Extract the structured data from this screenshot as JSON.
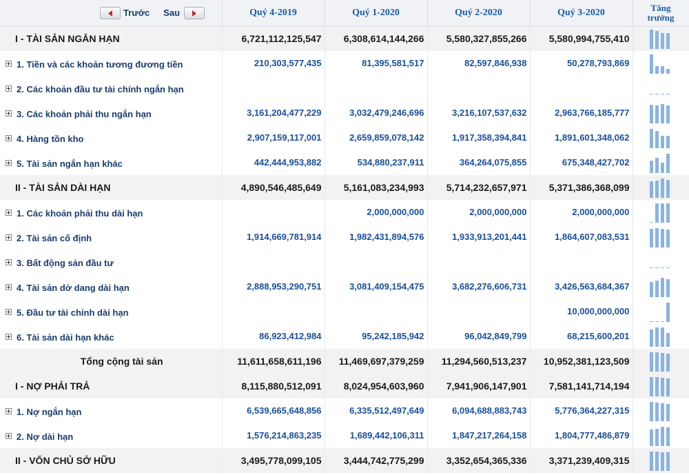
{
  "nav": {
    "prev_label": "Trước",
    "next_label": "Sau",
    "prev_icon": "arrow-left-icon",
    "next_icon": "arrow-right-icon",
    "arrow_color": "#c0262d"
  },
  "columns": [
    "Quý 4-2019",
    "Quý 1-2020",
    "Quý 2-2020",
    "Quý 3-2020"
  ],
  "growth_header": [
    "Tăng",
    "trưởng"
  ],
  "rows": [
    {
      "type": "sec",
      "label": "I - TÀI SẢN NGẮN HẠN",
      "values": [
        "6,721,112,125,547",
        "6,308,614,144,266",
        "5,580,327,855,266",
        "5,580,994,755,410"
      ],
      "trend": [
        1,
        0.94,
        0.83,
        0.83
      ]
    },
    {
      "type": "item",
      "label": "1. Tiền và các khoản tương đương tiền",
      "values": [
        "210,303,577,435",
        "81,395,581,517",
        "82,597,846,938",
        "50,278,793,869"
      ],
      "trend": [
        1,
        0.39,
        0.39,
        0.24
      ]
    },
    {
      "type": "item",
      "label": "2. Các khoản đầu tư tài chính ngắn hạn",
      "values": [
        "",
        "",
        "",
        ""
      ],
      "trend": []
    },
    {
      "type": "item",
      "label": "3. Các khoản phải thu ngắn hạn",
      "values": [
        "3,161,204,477,229",
        "3,032,479,246,696",
        "3,216,107,537,632",
        "2,963,766,185,777"
      ],
      "trend": [
        0.98,
        0.94,
        1,
        0.92
      ]
    },
    {
      "type": "item",
      "label": "4. Hàng tồn kho",
      "values": [
        "2,907,159,117,001",
        "2,659,859,078,142",
        "1,917,358,394,841",
        "1,891,601,348,062"
      ],
      "trend": [
        1,
        0.91,
        0.66,
        0.65
      ]
    },
    {
      "type": "item",
      "label": "5. Tài sản ngắn hạn khác",
      "values": [
        "442,444,953,882",
        "534,880,237,911",
        "364,264,075,855",
        "675,348,427,702"
      ],
      "trend": [
        0.66,
        0.79,
        0.54,
        1
      ]
    },
    {
      "type": "sec",
      "label": "II - TÀI SẢN DÀI HẠN",
      "values": [
        "4,890,546,485,649",
        "5,161,083,234,993",
        "5,714,232,657,971",
        "5,371,386,368,099"
      ],
      "trend": [
        0.86,
        0.9,
        1,
        0.94
      ]
    },
    {
      "type": "item",
      "label": "1. Các khoản phải thu dài hạn",
      "values": [
        "",
        "2,000,000,000",
        "2,000,000,000",
        "2,000,000,000"
      ],
      "trend": [
        0.03,
        1,
        1,
        1
      ]
    },
    {
      "type": "item",
      "label": "2. Tài sản cố định",
      "values": [
        "1,914,669,781,914",
        "1,982,431,894,576",
        "1,933,913,201,441",
        "1,864,607,083,531"
      ],
      "trend": [
        0.97,
        1,
        0.98,
        0.94
      ]
    },
    {
      "type": "item",
      "label": "3. Bất động sản đầu tư",
      "values": [
        "",
        "",
        "",
        ""
      ],
      "trend": []
    },
    {
      "type": "item",
      "label": "4. Tài sản dở dang dài hạn",
      "values": [
        "2,888,953,290,751",
        "3,081,409,154,475",
        "3,682,276,606,731",
        "3,426,563,684,367"
      ],
      "trend": [
        0.78,
        0.84,
        1,
        0.93
      ]
    },
    {
      "type": "item",
      "label": "5. Đầu tư tài chính dài hạn",
      "values": [
        "",
        "",
        "",
        "10,000,000,000"
      ],
      "trend": [
        0.03,
        0.03,
        0.03,
        1
      ]
    },
    {
      "type": "item",
      "label": "6. Tài sản dài hạn khác",
      "values": [
        "86,923,412,984",
        "95,242,185,942",
        "96,042,849,799",
        "68,215,600,201"
      ],
      "trend": [
        0.91,
        0.99,
        1,
        0.71
      ]
    },
    {
      "type": "total",
      "label": "Tổng cộng tài sản",
      "values": [
        "11,611,658,611,196",
        "11,469,697,379,259",
        "11,294,560,513,237",
        "10,952,381,123,509"
      ],
      "trend": [
        1,
        0.99,
        0.97,
        0.94
      ]
    },
    {
      "type": "sec",
      "label": "I - NỢ PHẢI TRẢ",
      "values": [
        "8,115,880,512,091",
        "8,024,954,603,960",
        "7,941,906,147,901",
        "7,581,141,714,194"
      ],
      "trend": [
        1,
        0.99,
        0.98,
        0.93
      ]
    },
    {
      "type": "item",
      "label": "1. Nợ ngắn hạn",
      "values": [
        "6,539,665,648,856",
        "6,335,512,497,649",
        "6,094,688,883,743",
        "5,776,364,227,315"
      ],
      "trend": [
        1,
        0.97,
        0.93,
        0.88
      ]
    },
    {
      "type": "item",
      "label": "2. Nợ dài hạn",
      "values": [
        "1,576,214,863,235",
        "1,689,442,106,311",
        "1,847,217,264,158",
        "1,804,777,486,879"
      ],
      "trend": [
        0.85,
        0.91,
        1,
        0.98
      ]
    },
    {
      "type": "sec",
      "label": "II - VỐN CHỦ SỞ HỮU",
      "values": [
        "3,495,778,099,105",
        "3,444,742,775,299",
        "3,352,654,365,336",
        "3,371,239,409,315"
      ],
      "trend": [
        1,
        0.99,
        0.96,
        0.96
      ]
    }
  ],
  "colors": {
    "header_bg": "#f0f2f5",
    "section_bg": "#f2f2f2",
    "link_text": "#1a4f9c",
    "spark_bar": "#8ab3e0"
  }
}
